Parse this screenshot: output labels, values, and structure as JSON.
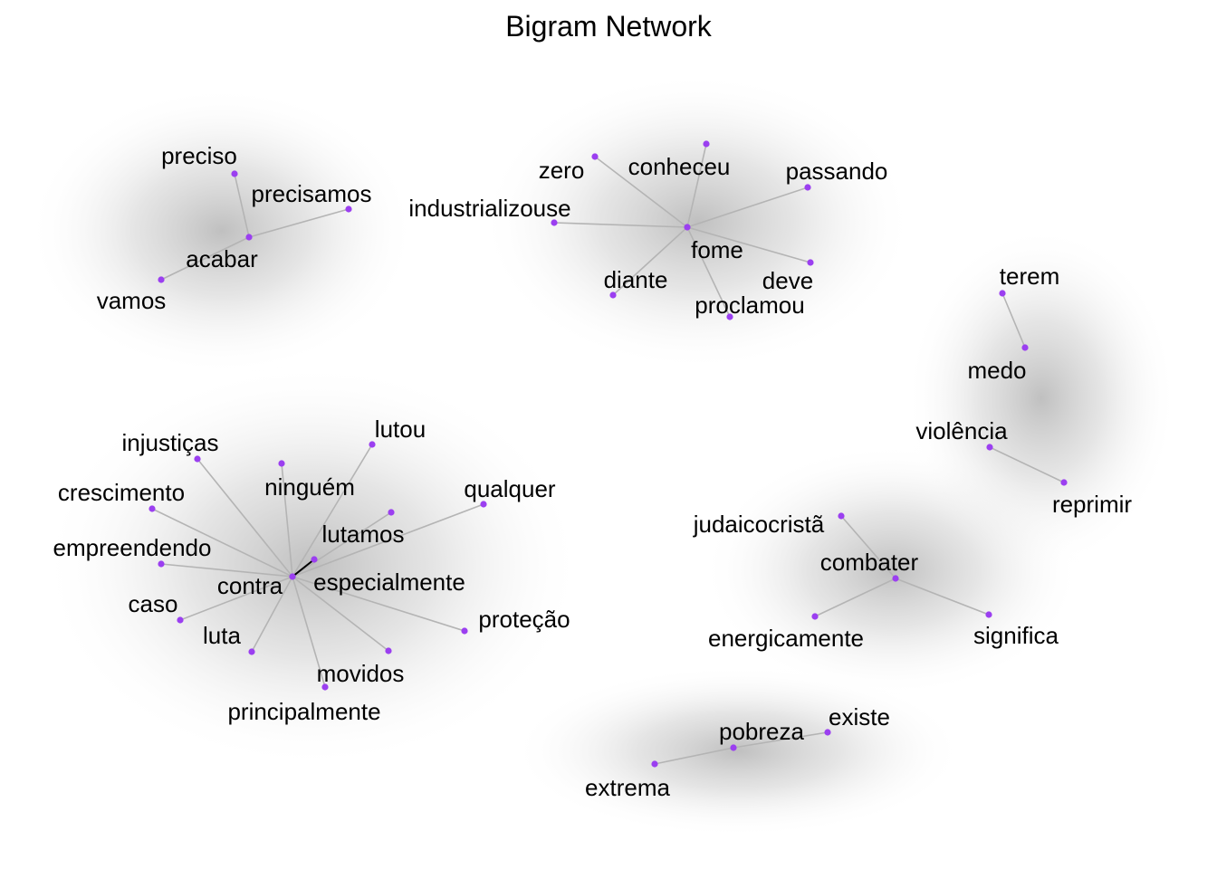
{
  "title": "Bigram Network",
  "colors": {
    "node": "#9b3ff0",
    "edge": "#b4b4b4",
    "edge_strong": "#000000",
    "glow": "#9a9a9a"
  },
  "nodes": [
    {
      "id": "preciso",
      "label": "preciso"
    },
    {
      "id": "precisamos",
      "label": "precisamos"
    },
    {
      "id": "acabar",
      "label": "acabar"
    },
    {
      "id": "vamos",
      "label": "vamos"
    },
    {
      "id": "zero",
      "label": "zero"
    },
    {
      "id": "conheceu",
      "label": "conheceu"
    },
    {
      "id": "passando",
      "label": "passando"
    },
    {
      "id": "industrializouse",
      "label": "industrializouse"
    },
    {
      "id": "fome",
      "label": "fome"
    },
    {
      "id": "diante",
      "label": "diante"
    },
    {
      "id": "deve",
      "label": "deve"
    },
    {
      "id": "proclamou",
      "label": "proclamou"
    },
    {
      "id": "terem",
      "label": "terem"
    },
    {
      "id": "medo",
      "label": "medo"
    },
    {
      "id": "violencia",
      "label": "violência"
    },
    {
      "id": "reprimir",
      "label": "reprimir"
    },
    {
      "id": "judaicocrista",
      "label": "judaicocristã"
    },
    {
      "id": "combater",
      "label": "combater"
    },
    {
      "id": "energicamente",
      "label": "energicamente"
    },
    {
      "id": "significa",
      "label": "significa"
    },
    {
      "id": "pobreza",
      "label": "pobreza"
    },
    {
      "id": "existe",
      "label": "existe"
    },
    {
      "id": "extrema",
      "label": "extrema"
    },
    {
      "id": "lutou",
      "label": "lutou"
    },
    {
      "id": "injusticas",
      "label": "injustiças"
    },
    {
      "id": "ninguem",
      "label": "ninguém"
    },
    {
      "id": "qualquer",
      "label": "qualquer"
    },
    {
      "id": "crescimento",
      "label": "crescimento"
    },
    {
      "id": "lutamos",
      "label": "lutamos"
    },
    {
      "id": "empreendendo",
      "label": "empreendendo"
    },
    {
      "id": "contra",
      "label": "contra"
    },
    {
      "id": "especialmente",
      "label": "especialmente"
    },
    {
      "id": "caso",
      "label": "caso"
    },
    {
      "id": "protecao",
      "label": "proteção"
    },
    {
      "id": "luta",
      "label": "luta"
    },
    {
      "id": "movidos",
      "label": "movidos"
    },
    {
      "id": "principalmente",
      "label": "principalmente"
    }
  ],
  "edges": [
    {
      "from": "preciso",
      "to": "acabar"
    },
    {
      "from": "precisamos",
      "to": "acabar"
    },
    {
      "from": "vamos",
      "to": "acabar"
    },
    {
      "from": "zero",
      "to": "fome"
    },
    {
      "from": "conheceu",
      "to": "fome"
    },
    {
      "from": "passando",
      "to": "fome"
    },
    {
      "from": "industrializouse",
      "to": "fome"
    },
    {
      "from": "diante",
      "to": "fome"
    },
    {
      "from": "deve",
      "to": "fome"
    },
    {
      "from": "proclamou",
      "to": "fome"
    },
    {
      "from": "terem",
      "to": "medo"
    },
    {
      "from": "violencia",
      "to": "reprimir"
    },
    {
      "from": "judaicocrista",
      "to": "combater"
    },
    {
      "from": "energicamente",
      "to": "combater"
    },
    {
      "from": "significa",
      "to": "combater"
    },
    {
      "from": "extrema",
      "to": "pobreza"
    },
    {
      "from": "pobreza",
      "to": "existe"
    },
    {
      "from": "lutou",
      "to": "contra"
    },
    {
      "from": "injusticas",
      "to": "contra"
    },
    {
      "from": "ninguem",
      "to": "contra"
    },
    {
      "from": "qualquer",
      "to": "contra"
    },
    {
      "from": "crescimento",
      "to": "contra"
    },
    {
      "from": "lutamos",
      "to": "contra"
    },
    {
      "from": "empreendendo",
      "to": "contra"
    },
    {
      "from": "especialmente",
      "to": "contra",
      "strong": true
    },
    {
      "from": "caso",
      "to": "contra"
    },
    {
      "from": "protecao",
      "to": "contra"
    },
    {
      "from": "luta",
      "to": "contra"
    },
    {
      "from": "movidos",
      "to": "contra"
    },
    {
      "from": "principalmente",
      "to": "contra"
    }
  ]
}
